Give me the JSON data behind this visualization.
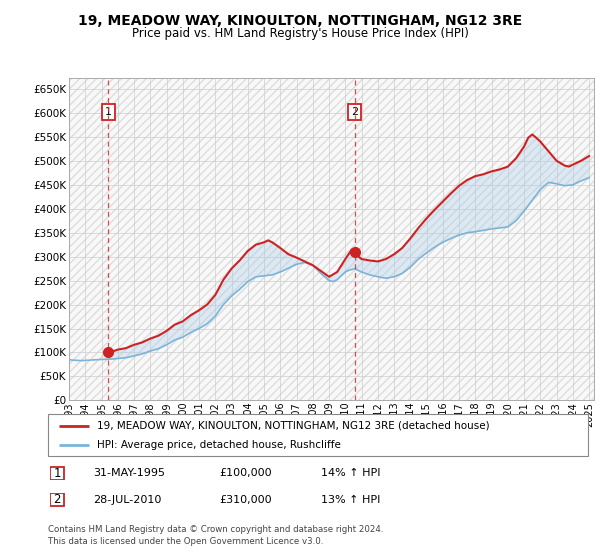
{
  "title": "19, MEADOW WAY, KINOULTON, NOTTINGHAM, NG12 3RE",
  "subtitle": "Price paid vs. HM Land Registry's House Price Index (HPI)",
  "ylabel_ticks": [
    "£0",
    "£50K",
    "£100K",
    "£150K",
    "£200K",
    "£250K",
    "£300K",
    "£350K",
    "£400K",
    "£450K",
    "£500K",
    "£550K",
    "£600K",
    "£650K"
  ],
  "ytick_vals": [
    0,
    50000,
    100000,
    150000,
    200000,
    250000,
    300000,
    350000,
    400000,
    450000,
    500000,
    550000,
    600000,
    650000
  ],
  "ylim": [
    0,
    672000
  ],
  "xlim_start": 1993.0,
  "xlim_end": 2025.3,
  "purchase1_x": 1995.42,
  "purchase1_y": 100000,
  "purchase1_label": "1",
  "purchase2_x": 2010.58,
  "purchase2_y": 310000,
  "purchase2_label": "2",
  "hpi_line_color": "#7ab4d8",
  "price_line_color": "#cc2222",
  "marker_color": "#cc2222",
  "dashed_line_color": "#cc3333",
  "fill_color": "#aacce8",
  "grid_color": "#cccccc",
  "bg_color": "#f5f5f5",
  "legend_line1": "19, MEADOW WAY, KINOULTON, NOTTINGHAM, NG12 3RE (detached house)",
  "legend_line2": "HPI: Average price, detached house, Rushcliffe",
  "copyright": "Contains HM Land Registry data © Crown copyright and database right 2024.\nThis data is licensed under the Open Government Licence v3.0.",
  "hpi_data": [
    [
      1993.0,
      85000
    ],
    [
      1993.25,
      84000
    ],
    [
      1993.5,
      83500
    ],
    [
      1993.75,
      83000
    ],
    [
      1994.0,
      83500
    ],
    [
      1994.25,
      84000
    ],
    [
      1994.5,
      84500
    ],
    [
      1994.75,
      85000
    ],
    [
      1995.0,
      85500
    ],
    [
      1995.25,
      85800
    ],
    [
      1995.42,
      86000
    ],
    [
      1995.5,
      86200
    ],
    [
      1995.75,
      86500
    ],
    [
      1996.0,
      87500
    ],
    [
      1996.5,
      89000
    ],
    [
      1997.0,
      93000
    ],
    [
      1997.5,
      97000
    ],
    [
      1998.0,
      103000
    ],
    [
      1998.5,
      108000
    ],
    [
      1999.0,
      116000
    ],
    [
      1999.5,
      126000
    ],
    [
      2000.0,
      132000
    ],
    [
      2000.5,
      142000
    ],
    [
      2001.0,
      150000
    ],
    [
      2001.5,
      160000
    ],
    [
      2002.0,
      176000
    ],
    [
      2002.5,
      200000
    ],
    [
      2003.0,
      218000
    ],
    [
      2003.5,
      232000
    ],
    [
      2004.0,
      248000
    ],
    [
      2004.5,
      258000
    ],
    [
      2005.0,
      260000
    ],
    [
      2005.5,
      262000
    ],
    [
      2006.0,
      268000
    ],
    [
      2006.5,
      276000
    ],
    [
      2007.0,
      284000
    ],
    [
      2007.5,
      288000
    ],
    [
      2008.0,
      282000
    ],
    [
      2008.5,
      265000
    ],
    [
      2009.0,
      250000
    ],
    [
      2009.25,
      248000
    ],
    [
      2009.5,
      252000
    ],
    [
      2009.75,
      260000
    ],
    [
      2010.0,
      268000
    ],
    [
      2010.25,
      272000
    ],
    [
      2010.5,
      274000
    ],
    [
      2010.58,
      275000
    ],
    [
      2010.75,
      272000
    ],
    [
      2011.0,
      268000
    ],
    [
      2011.5,
      262000
    ],
    [
      2012.0,
      258000
    ],
    [
      2012.5,
      255000
    ],
    [
      2013.0,
      258000
    ],
    [
      2013.5,
      265000
    ],
    [
      2014.0,
      278000
    ],
    [
      2014.5,
      295000
    ],
    [
      2015.0,
      308000
    ],
    [
      2015.5,
      320000
    ],
    [
      2016.0,
      330000
    ],
    [
      2016.5,
      338000
    ],
    [
      2017.0,
      345000
    ],
    [
      2017.5,
      350000
    ],
    [
      2018.0,
      352000
    ],
    [
      2018.5,
      355000
    ],
    [
      2019.0,
      358000
    ],
    [
      2019.5,
      360000
    ],
    [
      2020.0,
      362000
    ],
    [
      2020.5,
      375000
    ],
    [
      2021.0,
      395000
    ],
    [
      2021.5,
      418000
    ],
    [
      2022.0,
      440000
    ],
    [
      2022.5,
      455000
    ],
    [
      2023.0,
      452000
    ],
    [
      2023.5,
      448000
    ],
    [
      2024.0,
      450000
    ],
    [
      2024.5,
      458000
    ],
    [
      2025.0,
      465000
    ]
  ],
  "price_data": [
    [
      1995.42,
      100000
    ],
    [
      1995.5,
      101000
    ],
    [
      1995.75,
      103000
    ],
    [
      1996.0,
      106000
    ],
    [
      1996.5,
      109000
    ],
    [
      1997.0,
      116000
    ],
    [
      1997.5,
      121000
    ],
    [
      1998.0,
      129000
    ],
    [
      1998.5,
      135000
    ],
    [
      1999.0,
      145000
    ],
    [
      1999.5,
      158000
    ],
    [
      2000.0,
      165000
    ],
    [
      2000.5,
      178000
    ],
    [
      2001.0,
      188000
    ],
    [
      2001.5,
      200000
    ],
    [
      2002.0,
      220000
    ],
    [
      2002.5,
      252000
    ],
    [
      2003.0,
      275000
    ],
    [
      2003.5,
      292000
    ],
    [
      2004.0,
      312000
    ],
    [
      2004.5,
      325000
    ],
    [
      2005.0,
      330000
    ],
    [
      2005.25,
      334000
    ],
    [
      2005.5,
      330000
    ],
    [
      2006.0,
      318000
    ],
    [
      2006.5,
      305000
    ],
    [
      2007.0,
      298000
    ],
    [
      2007.5,
      290000
    ],
    [
      2008.0,
      282000
    ],
    [
      2008.5,
      270000
    ],
    [
      2009.0,
      258000
    ],
    [
      2009.5,
      268000
    ],
    [
      2010.0,
      295000
    ],
    [
      2010.4,
      315000
    ],
    [
      2010.58,
      310000
    ],
    [
      2010.75,
      302000
    ],
    [
      2011.0,
      295000
    ],
    [
      2011.5,
      292000
    ],
    [
      2012.0,
      290000
    ],
    [
      2012.5,
      295000
    ],
    [
      2013.0,
      305000
    ],
    [
      2013.5,
      318000
    ],
    [
      2014.0,
      338000
    ],
    [
      2014.5,
      360000
    ],
    [
      2015.0,
      380000
    ],
    [
      2015.5,
      398000
    ],
    [
      2016.0,
      415000
    ],
    [
      2016.5,
      432000
    ],
    [
      2017.0,
      448000
    ],
    [
      2017.5,
      460000
    ],
    [
      2018.0,
      468000
    ],
    [
      2018.5,
      472000
    ],
    [
      2019.0,
      478000
    ],
    [
      2019.5,
      482000
    ],
    [
      2020.0,
      488000
    ],
    [
      2020.5,
      505000
    ],
    [
      2021.0,
      530000
    ],
    [
      2021.25,
      548000
    ],
    [
      2021.5,
      555000
    ],
    [
      2021.75,
      548000
    ],
    [
      2022.0,
      540000
    ],
    [
      2022.25,
      530000
    ],
    [
      2022.5,
      520000
    ],
    [
      2022.75,
      510000
    ],
    [
      2023.0,
      500000
    ],
    [
      2023.25,
      495000
    ],
    [
      2023.5,
      490000
    ],
    [
      2023.75,
      488000
    ],
    [
      2024.0,
      492000
    ],
    [
      2024.5,
      500000
    ],
    [
      2025.0,
      510000
    ]
  ],
  "xtick_years": [
    1993,
    1994,
    1995,
    1996,
    1997,
    1998,
    1999,
    2000,
    2001,
    2002,
    2003,
    2004,
    2005,
    2006,
    2007,
    2008,
    2009,
    2010,
    2011,
    2012,
    2013,
    2014,
    2015,
    2016,
    2017,
    2018,
    2019,
    2020,
    2021,
    2022,
    2023,
    2024,
    2025
  ]
}
